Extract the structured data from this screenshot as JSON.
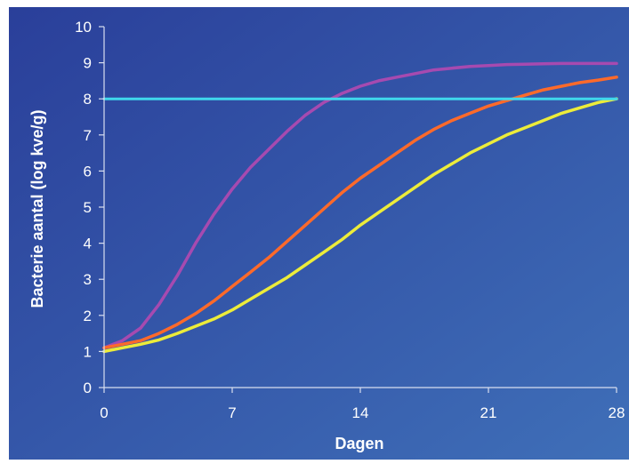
{
  "colors": {
    "background_top": "#2a3f9a",
    "background_bottom": "#3f6fb8",
    "axis": "#d8def0",
    "series": [
      "#a64ab0",
      "#ff6a2a",
      "#ecec3a",
      "#3fd8ec"
    ]
  },
  "chart_data": {
    "type": "line",
    "title": "",
    "xlabel": "Dagen",
    "ylabel": "Bacterie aantal (log kve/g)",
    "xlim": [
      0,
      28
    ],
    "ylim": [
      0,
      10
    ],
    "xticks": [
      "0",
      "7",
      "14",
      "21",
      "28"
    ],
    "yticks": [
      "0",
      "1",
      "2",
      "3",
      "4",
      "5",
      "6",
      "7",
      "8",
      "9",
      "10"
    ],
    "grid": false,
    "legend": "none",
    "series": [
      {
        "color": "#a64ab0",
        "points": [
          [
            0,
            1.1
          ],
          [
            1,
            1.3
          ],
          [
            2,
            1.65
          ],
          [
            3,
            2.3
          ],
          [
            4,
            3.1
          ],
          [
            5,
            4.0
          ],
          [
            6,
            4.8
          ],
          [
            7,
            5.5
          ],
          [
            8,
            6.1
          ],
          [
            9,
            6.6
          ],
          [
            10,
            7.1
          ],
          [
            11,
            7.55
          ],
          [
            12,
            7.9
          ],
          [
            13,
            8.15
          ],
          [
            14,
            8.35
          ],
          [
            15,
            8.5
          ],
          [
            16,
            8.6
          ],
          [
            17,
            8.7
          ],
          [
            18,
            8.8
          ],
          [
            19,
            8.85
          ],
          [
            20,
            8.9
          ],
          [
            21,
            8.92
          ],
          [
            22,
            8.95
          ],
          [
            23,
            8.96
          ],
          [
            24,
            8.97
          ],
          [
            25,
            8.98
          ],
          [
            26,
            8.98
          ],
          [
            27,
            8.98
          ],
          [
            28,
            8.98
          ]
        ]
      },
      {
        "color": "#ff6a2a",
        "points": [
          [
            0,
            1.1
          ],
          [
            1,
            1.2
          ],
          [
            2,
            1.3
          ],
          [
            3,
            1.5
          ],
          [
            4,
            1.75
          ],
          [
            5,
            2.05
          ],
          [
            6,
            2.4
          ],
          [
            7,
            2.8
          ],
          [
            8,
            3.2
          ],
          [
            9,
            3.6
          ],
          [
            10,
            4.05
          ],
          [
            11,
            4.5
          ],
          [
            12,
            4.95
          ],
          [
            13,
            5.4
          ],
          [
            14,
            5.8
          ],
          [
            15,
            6.15
          ],
          [
            16,
            6.5
          ],
          [
            17,
            6.85
          ],
          [
            18,
            7.15
          ],
          [
            19,
            7.4
          ],
          [
            20,
            7.6
          ],
          [
            21,
            7.8
          ],
          [
            22,
            7.95
          ],
          [
            23,
            8.1
          ],
          [
            24,
            8.25
          ],
          [
            25,
            8.35
          ],
          [
            26,
            8.45
          ],
          [
            27,
            8.52
          ],
          [
            28,
            8.6
          ]
        ]
      },
      {
        "color": "#ecec3a",
        "points": [
          [
            0,
            1.0
          ],
          [
            1,
            1.1
          ],
          [
            2,
            1.2
          ],
          [
            3,
            1.32
          ],
          [
            4,
            1.5
          ],
          [
            5,
            1.7
          ],
          [
            6,
            1.9
          ],
          [
            7,
            2.15
          ],
          [
            8,
            2.45
          ],
          [
            9,
            2.75
          ],
          [
            10,
            3.05
          ],
          [
            11,
            3.4
          ],
          [
            12,
            3.75
          ],
          [
            13,
            4.1
          ],
          [
            14,
            4.5
          ],
          [
            15,
            4.85
          ],
          [
            16,
            5.2
          ],
          [
            17,
            5.55
          ],
          [
            18,
            5.9
          ],
          [
            19,
            6.2
          ],
          [
            20,
            6.5
          ],
          [
            21,
            6.75
          ],
          [
            22,
            7.0
          ],
          [
            23,
            7.2
          ],
          [
            24,
            7.4
          ],
          [
            25,
            7.6
          ],
          [
            26,
            7.75
          ],
          [
            27,
            7.9
          ],
          [
            28,
            8.0
          ]
        ]
      },
      {
        "color": "#3fd8ec",
        "points": [
          [
            0,
            8.0
          ],
          [
            28,
            8.0
          ]
        ]
      }
    ]
  }
}
